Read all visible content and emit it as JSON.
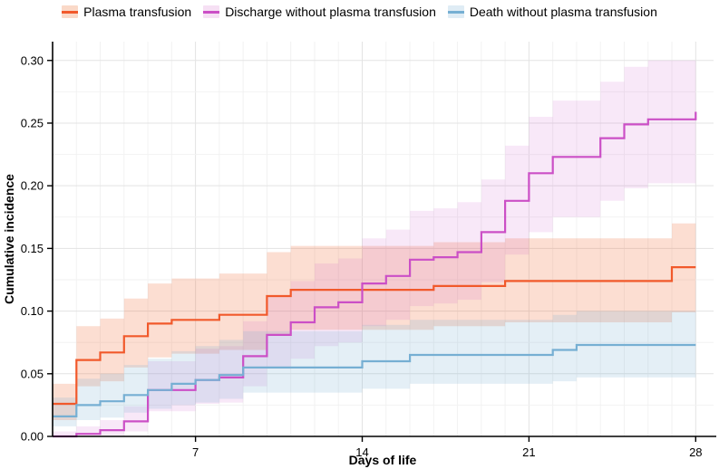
{
  "figure": {
    "background": "#ffffff"
  },
  "legend": {
    "items": [
      {
        "label": "Plasma transfusion",
        "color": "#f1592b",
        "fill": "#fad9c8"
      },
      {
        "label": "Discharge without plasma transfusion",
        "color": "#cb4fc6",
        "fill": "#f6e0f4"
      },
      {
        "label": "Death without plasma transfusion",
        "color": "#76afd3",
        "fill": "#dfecf5"
      }
    ]
  },
  "chart_data": {
    "type": "line",
    "subtype": "step-function-with-confidence-bands",
    "title": "",
    "xlabel": "Days of life",
    "ylabel": "Cumulative incidence",
    "xlim": [
      1,
      28.75
    ],
    "ylim": [
      0,
      0.315
    ],
    "x_ticks": [
      7,
      14,
      21,
      28
    ],
    "y_ticks": [
      0,
      0.05,
      0.1,
      0.15,
      0.2,
      0.25,
      0.3
    ],
    "y_tick_labels": [
      "0.00",
      "0.05",
      "0.10",
      "0.15",
      "0.20",
      "0.25",
      "0.30"
    ],
    "grid": {
      "visible": true,
      "x_minor_every_days": 1,
      "y_minor_step": 0.025,
      "major_color": "#e3e3e3",
      "minor_color": "#f2f2f2"
    },
    "legend_position": "top",
    "series": [
      {
        "name": "Plasma transfusion",
        "color": "#f1592b",
        "band_fill": "rgba(242,104,52,0.22)",
        "end_day": 28,
        "points": [
          {
            "d": 1,
            "v": 0.026,
            "lo": 0.013,
            "hi": 0.042
          },
          {
            "d": 2,
            "v": 0.061,
            "lo": 0.04,
            "hi": 0.088
          },
          {
            "d": 3,
            "v": 0.067,
            "lo": 0.044,
            "hi": 0.094
          },
          {
            "d": 4,
            "v": 0.08,
            "lo": 0.055,
            "hi": 0.11
          },
          {
            "d": 5,
            "v": 0.09,
            "lo": 0.063,
            "hi": 0.122
          },
          {
            "d": 6,
            "v": 0.093,
            "lo": 0.066,
            "hi": 0.126
          },
          {
            "d": 8,
            "v": 0.097,
            "lo": 0.069,
            "hi": 0.13
          },
          {
            "d": 10,
            "v": 0.112,
            "lo": 0.081,
            "hi": 0.147
          },
          {
            "d": 11,
            "v": 0.117,
            "lo": 0.085,
            "hi": 0.152
          },
          {
            "d": 17,
            "v": 0.12,
            "lo": 0.088,
            "hi": 0.155
          },
          {
            "d": 20,
            "v": 0.124,
            "lo": 0.091,
            "hi": 0.158
          },
          {
            "d": 27,
            "v": 0.135,
            "lo": 0.099,
            "hi": 0.17
          }
        ]
      },
      {
        "name": "Discharge without plasma transfusion",
        "color": "#cb4fc6",
        "band_fill": "rgba(203,79,198,0.13)",
        "end_day": 28,
        "points": [
          {
            "d": 1,
            "v": 0.0,
            "lo": 0.0,
            "hi": 0.004
          },
          {
            "d": 2,
            "v": 0.002,
            "lo": 0.0,
            "hi": 0.008
          },
          {
            "d": 3,
            "v": 0.005,
            "lo": 0.001,
            "hi": 0.013
          },
          {
            "d": 4,
            "v": 0.012,
            "lo": 0.004,
            "hi": 0.024
          },
          {
            "d": 5,
            "v": 0.037,
            "lo": 0.02,
            "hi": 0.06
          },
          {
            "d": 7,
            "v": 0.045,
            "lo": 0.026,
            "hi": 0.07
          },
          {
            "d": 8,
            "v": 0.047,
            "lo": 0.027,
            "hi": 0.072
          },
          {
            "d": 9,
            "v": 0.064,
            "lo": 0.04,
            "hi": 0.092
          },
          {
            "d": 10,
            "v": 0.081,
            "lo": 0.054,
            "hi": 0.112
          },
          {
            "d": 11,
            "v": 0.091,
            "lo": 0.062,
            "hi": 0.124
          },
          {
            "d": 12,
            "v": 0.103,
            "lo": 0.072,
            "hi": 0.138
          },
          {
            "d": 13,
            "v": 0.107,
            "lo": 0.075,
            "hi": 0.142
          },
          {
            "d": 14,
            "v": 0.122,
            "lo": 0.088,
            "hi": 0.158
          },
          {
            "d": 15,
            "v": 0.128,
            "lo": 0.093,
            "hi": 0.165
          },
          {
            "d": 16,
            "v": 0.141,
            "lo": 0.104,
            "hi": 0.18
          },
          {
            "d": 17,
            "v": 0.143,
            "lo": 0.106,
            "hi": 0.182
          },
          {
            "d": 18,
            "v": 0.147,
            "lo": 0.109,
            "hi": 0.187
          },
          {
            "d": 19,
            "v": 0.163,
            "lo": 0.123,
            "hi": 0.205
          },
          {
            "d": 20,
            "v": 0.188,
            "lo": 0.145,
            "hi": 0.232
          },
          {
            "d": 21,
            "v": 0.21,
            "lo": 0.163,
            "hi": 0.255
          },
          {
            "d": 22,
            "v": 0.223,
            "lo": 0.175,
            "hi": 0.268
          },
          {
            "d": 24,
            "v": 0.238,
            "lo": 0.188,
            "hi": 0.283
          },
          {
            "d": 25,
            "v": 0.249,
            "lo": 0.198,
            "hi": 0.295
          },
          {
            "d": 26,
            "v": 0.253,
            "lo": 0.202,
            "hi": 0.3
          },
          {
            "d": 28,
            "v": 0.259,
            "lo": 0.207,
            "hi": 0.3
          }
        ]
      },
      {
        "name": "Death without plasma transfusion",
        "color": "#76afd3",
        "band_fill": "rgba(118,175,211,0.20)",
        "end_day": 28,
        "points": [
          {
            "d": 1,
            "v": 0.016,
            "lo": 0.008,
            "hi": 0.031
          },
          {
            "d": 2,
            "v": 0.025,
            "lo": 0.013,
            "hi": 0.046
          },
          {
            "d": 3,
            "v": 0.028,
            "lo": 0.015,
            "hi": 0.05
          },
          {
            "d": 4,
            "v": 0.033,
            "lo": 0.019,
            "hi": 0.057
          },
          {
            "d": 5,
            "v": 0.037,
            "lo": 0.022,
            "hi": 0.062
          },
          {
            "d": 6,
            "v": 0.042,
            "lo": 0.025,
            "hi": 0.068
          },
          {
            "d": 7,
            "v": 0.045,
            "lo": 0.027,
            "hi": 0.072
          },
          {
            "d": 8,
            "v": 0.049,
            "lo": 0.03,
            "hi": 0.077
          },
          {
            "d": 9,
            "v": 0.055,
            "lo": 0.035,
            "hi": 0.084
          },
          {
            "d": 14,
            "v": 0.06,
            "lo": 0.038,
            "hi": 0.089
          },
          {
            "d": 16,
            "v": 0.065,
            "lo": 0.042,
            "hi": 0.093
          },
          {
            "d": 22,
            "v": 0.069,
            "lo": 0.044,
            "hi": 0.097
          },
          {
            "d": 23,
            "v": 0.073,
            "lo": 0.047,
            "hi": 0.1
          }
        ]
      }
    ]
  }
}
